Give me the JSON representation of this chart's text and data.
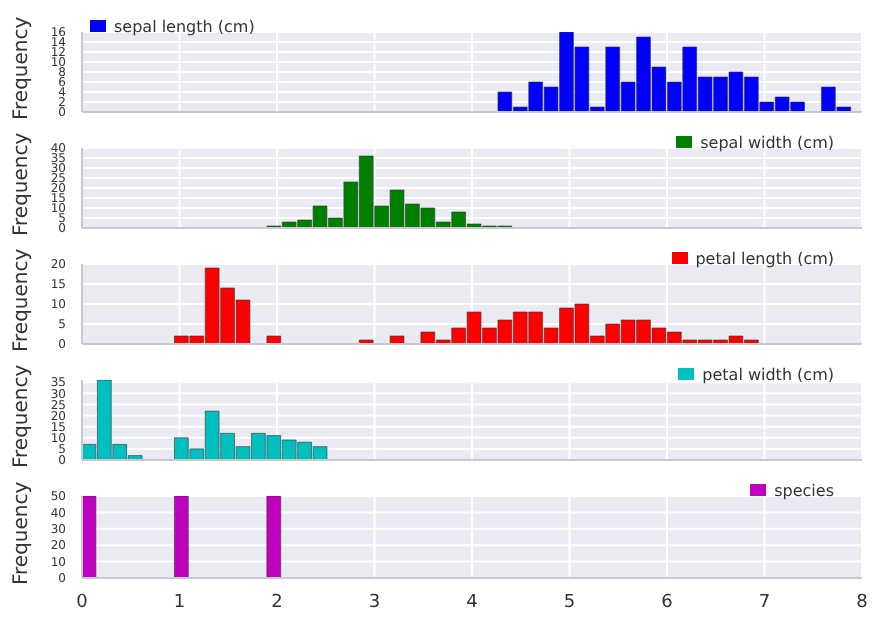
{
  "chart_data": [
    {
      "type": "histogram",
      "ylabel": "Frequency",
      "bins": [
        4.266,
        4.424,
        4.582,
        4.74,
        4.898,
        5.056,
        5.214,
        5.372,
        5.53,
        5.688,
        5.846,
        6.004,
        6.162,
        6.32,
        6.478,
        6.636,
        6.794,
        6.952,
        7.11,
        7.268,
        7.426,
        7.584,
        7.742,
        7.9
      ],
      "series": [
        {
          "name": "sepal length (cm)",
          "color": "#0000ff",
          "values": [
            4,
            1,
            6,
            5,
            16,
            13,
            1,
            13,
            6,
            15,
            9,
            6,
            13,
            7,
            7,
            8,
            7,
            2,
            3,
            2,
            0,
            5,
            1
          ]
        }
      ],
      "xlim": [
        0,
        8
      ],
      "xticks": [
        0,
        1,
        2,
        3,
        4,
        5,
        6,
        7,
        8
      ],
      "ylim": [
        0,
        16
      ],
      "yticks": [
        0,
        2,
        4,
        6,
        8,
        10,
        12,
        14,
        16
      ],
      "grid": true,
      "legend": "top left",
      "tick_labels": "y"
    },
    {
      "type": "histogram",
      "ylabel": "Frequency",
      "bins": [
        1.896,
        2.054,
        2.212,
        2.37,
        2.528,
        2.686,
        2.844,
        3.002,
        3.16,
        3.318,
        3.476,
        3.634,
        3.792,
        3.95,
        4.108,
        4.266,
        4.424
      ],
      "series": [
        {
          "name": "sepal width (cm)",
          "color": "#008000",
          "values": [
            1,
            3,
            4,
            11,
            5,
            23,
            36,
            11,
            19,
            12,
            10,
            3,
            8,
            2,
            1,
            1
          ]
        }
      ],
      "xlim": [
        0,
        8
      ],
      "xticks": [
        0,
        1,
        2,
        3,
        4,
        5,
        6,
        7,
        8
      ],
      "ylim": [
        0,
        40
      ],
      "yticks": [
        0,
        5,
        10,
        15,
        20,
        25,
        30,
        35,
        40
      ],
      "grid": true,
      "legend": "top right",
      "tick_labels": "y"
    },
    {
      "type": "histogram",
      "ylabel": "Frequency",
      "bins": [
        0.948,
        1.106,
        1.264,
        1.422,
        1.58,
        1.738,
        1.896,
        2.054,
        2.212,
        2.37,
        2.528,
        2.686,
        2.844,
        3.002,
        3.16,
        3.318,
        3.476,
        3.634,
        3.792,
        3.95,
        4.108,
        4.266,
        4.424,
        4.582,
        4.74,
        4.898,
        5.056,
        5.214,
        5.372,
        5.53,
        5.688,
        5.846,
        6.004,
        6.162,
        6.32,
        6.478,
        6.636,
        6.794,
        6.952
      ],
      "series": [
        {
          "name": "petal length (cm)",
          "color": "#ff0000",
          "values": [
            2,
            2,
            19,
            14,
            11,
            0,
            2,
            0,
            0,
            0,
            0,
            0,
            1,
            0,
            2,
            0,
            3,
            1,
            4,
            8,
            4,
            6,
            8,
            8,
            4,
            9,
            10,
            2,
            5,
            6,
            6,
            4,
            3,
            1,
            1,
            1,
            2,
            1
          ]
        }
      ],
      "xlim": [
        0,
        8
      ],
      "xticks": [
        0,
        1,
        2,
        3,
        4,
        5,
        6,
        7,
        8
      ],
      "ylim": [
        0,
        20
      ],
      "yticks": [
        0,
        5,
        10,
        15,
        20
      ],
      "grid": true,
      "legend": "top right",
      "tick_labels": "y"
    },
    {
      "type": "histogram",
      "ylabel": "Frequency",
      "bins": [
        0,
        0.158,
        0.316,
        0.474,
        0.632,
        0.79,
        0.948,
        1.106,
        1.264,
        1.422,
        1.58,
        1.738,
        1.896,
        2.054,
        2.212,
        2.37,
        2.528
      ],
      "series": [
        {
          "name": "petal width (cm)",
          "color": "#00bfbf",
          "values": [
            7,
            36,
            7,
            2,
            0,
            0,
            10,
            5,
            22,
            12,
            6,
            12,
            11,
            9,
            8,
            6
          ]
        }
      ],
      "xlim": [
        0,
        8
      ],
      "xticks": [
        0,
        1,
        2,
        3,
        4,
        5,
        6,
        7,
        8
      ],
      "ylim": [
        0,
        36
      ],
      "yticks": [
        0,
        5,
        10,
        15,
        20,
        25,
        30,
        35
      ],
      "grid": true,
      "legend": "top right",
      "tick_labels": "y"
    },
    {
      "type": "histogram",
      "ylabel": "Frequency",
      "bins": [
        0,
        0.158,
        0.316,
        0.474,
        0.632,
        0.79,
        0.948,
        1.106,
        1.264,
        1.422,
        1.58,
        1.738,
        1.896,
        2.054
      ],
      "series": [
        {
          "name": "species",
          "color": "#bf00bf",
          "values": [
            50,
            0,
            0,
            0,
            0,
            0,
            50,
            0,
            0,
            0,
            0,
            0,
            50
          ]
        }
      ],
      "xlim": [
        0,
        8
      ],
      "xticks": [
        0,
        1,
        2,
        3,
        4,
        5,
        6,
        7,
        8
      ],
      "ylim": [
        0,
        50
      ],
      "yticks": [
        0,
        10,
        20,
        30,
        40,
        50
      ],
      "grid": true,
      "legend": "top right"
    }
  ]
}
